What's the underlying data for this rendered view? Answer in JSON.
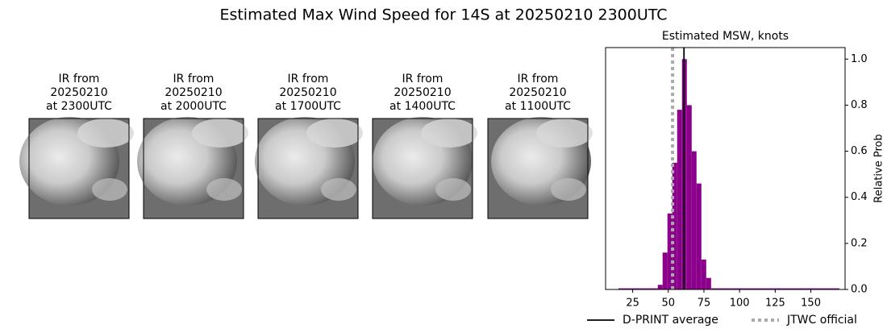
{
  "title": "Estimated Max Wind Speed for 14S at 20250210 2300UTC",
  "panels": [
    {
      "title_lines": [
        "IR from",
        "20250210",
        "at 2300UTC"
      ]
    },
    {
      "title_lines": [
        "IR from",
        "20250210",
        "at 2000UTC"
      ]
    },
    {
      "title_lines": [
        "IR from",
        "20250210",
        "at 1700UTC"
      ]
    },
    {
      "title_lines": [
        "IR from",
        "20250210",
        "at 1400UTC"
      ]
    },
    {
      "title_lines": [
        "IR from",
        "20250210",
        "at 1100UTC"
      ]
    }
  ],
  "chart_data": {
    "type": "histogram",
    "title": "Estimated MSW, knots",
    "y_label": "Relative Prob",
    "color": "#8b008b",
    "bins": [
      15,
      42.6,
      46,
      49.4,
      52.8,
      56.2,
      59.6,
      63,
      66.4,
      69.8,
      73.2,
      76.6,
      80,
      170
    ],
    "values": [
      0.005,
      0.02,
      0.16,
      0.33,
      0.55,
      0.78,
      1.0,
      0.8,
      0.6,
      0.46,
      0.13,
      0.05,
      0.005
    ],
    "xlim": [
      6,
      174
    ],
    "xticks": [
      25,
      50,
      75,
      100,
      125,
      150
    ],
    "ylim": [
      0,
      1.05
    ],
    "yticks": [
      {
        "value": 0,
        "label": "0.0"
      },
      0.2,
      0.4,
      0.6,
      0.8,
      {
        "value": 1,
        "label": "1.0"
      }
    ],
    "lines": [
      {
        "name": "D-PRINT average",
        "value": 61,
        "color": "#000000",
        "style": "solid"
      },
      {
        "name": "JTWC official",
        "value": 53,
        "color": "#a9a9a9",
        "style": "dotted"
      }
    ]
  }
}
